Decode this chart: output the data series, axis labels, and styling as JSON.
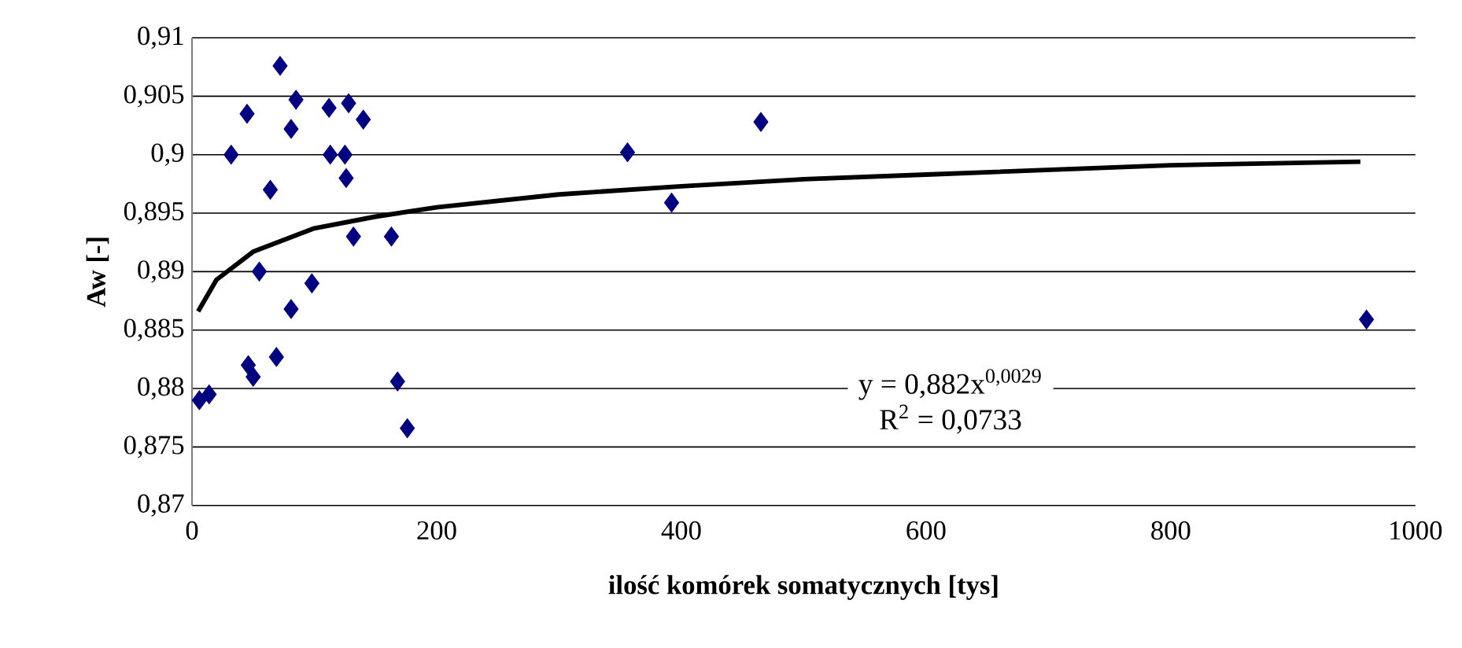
{
  "chart_data": {
    "type": "scatter",
    "xlabel": "ilość komórek somatycznych [tys]",
    "ylabel": "Aw [-]",
    "xlim": [
      0,
      1000
    ],
    "xticks": [
      0,
      200,
      400,
      600,
      800,
      1000
    ],
    "ylim": [
      0.87,
      0.91
    ],
    "yticks": [
      {
        "value": 0.87,
        "label": "0,87"
      },
      {
        "value": 0.875,
        "label": "0,875"
      },
      {
        "value": 0.88,
        "label": "0,88"
      },
      {
        "value": 0.885,
        "label": "0,885"
      },
      {
        "value": 0.89,
        "label": "0,89"
      },
      {
        "value": 0.895,
        "label": "0,895"
      },
      {
        "value": 0.9,
        "label": "0,9"
      },
      {
        "value": 0.905,
        "label": "0,905"
      },
      {
        "value": 0.91,
        "label": "0,91"
      }
    ],
    "grid": "y",
    "annotations": [
      "y = 0,882x$^{0,0029}$",
      "R$^{2}$ = 0,0733"
    ],
    "series": [
      {
        "color": "#000080",
        "marker": "diamond",
        "x": [
          6,
          14,
          32,
          45,
          46,
          50,
          55,
          64,
          69,
          72,
          81,
          81,
          85,
          98,
          112,
          113,
          125,
          126,
          128,
          132,
          140,
          163,
          168,
          176,
          356,
          392,
          465,
          960
        ],
        "values": [
          0.879,
          0.8795,
          0.9,
          0.9035,
          0.882,
          0.881,
          0.89,
          0.897,
          0.8827,
          0.9076,
          0.8868,
          0.9022,
          0.9047,
          0.889,
          0.904,
          0.9,
          0.9,
          0.898,
          0.9044,
          0.893,
          0.903,
          0.893,
          0.8806,
          0.8766,
          0.9002,
          0.8959,
          0.9028,
          0.8859
        ]
      },
      {
        "type": "line",
        "color": "#000000",
        "marker": "none",
        "line_style": "solid",
        "x": [
          5,
          20,
          50,
          100,
          150,
          200,
          300,
          400,
          500,
          600,
          700,
          800,
          955
        ],
        "values": [
          0.8866,
          0.8893,
          0.8917,
          0.8937,
          0.8947,
          0.8955,
          0.8966,
          0.8973,
          0.8979,
          0.8983,
          0.8987,
          0.8991,
          0.8994
        ]
      }
    ]
  }
}
